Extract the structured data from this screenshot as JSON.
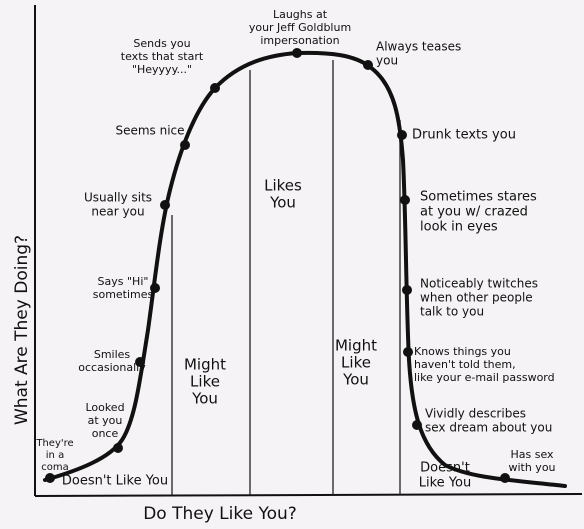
{
  "axes": {
    "y_label": "What Are They Doing?",
    "x_label": "Do They Like You?"
  },
  "regions": [
    {
      "lines": [
        "Doesn't Like You"
      ]
    },
    {
      "lines": [
        "Might",
        "Like",
        "You"
      ]
    },
    {
      "lines": [
        "Likes",
        "You"
      ]
    },
    {
      "lines": [
        "Might",
        "Like",
        "You"
      ]
    },
    {
      "lines": [
        "Doesn't",
        "Like You"
      ]
    }
  ],
  "points": [
    {
      "lines": [
        "They're",
        "in a",
        "coma"
      ]
    },
    {
      "lines": [
        "Looked",
        "at you",
        "once"
      ]
    },
    {
      "lines": [
        "Smiles",
        "occasionally"
      ]
    },
    {
      "lines": [
        "Says \"Hi\"",
        "sometimes"
      ]
    },
    {
      "lines": [
        "Usually sits",
        "near you"
      ]
    },
    {
      "lines": [
        "Seems nice"
      ]
    },
    {
      "lines": [
        "Sends you",
        "texts that start",
        "\"Heyyyy...\""
      ]
    },
    {
      "lines": [
        "Laughs at",
        "your Jeff Goldblum",
        "impersonation"
      ]
    },
    {
      "lines": [
        "Always teases",
        "you"
      ]
    },
    {
      "lines": [
        "Drunk texts you"
      ]
    },
    {
      "lines": [
        "Sometimes stares",
        "at you w/ crazed",
        "look in eyes"
      ]
    },
    {
      "lines": [
        "Noticeably twitches",
        "when other people",
        "talk to you"
      ]
    },
    {
      "lines": [
        "Knows things you",
        "haven't told them,",
        "like your e-mail password"
      ]
    },
    {
      "lines": [
        "Vividly describes",
        "sex dream about you"
      ]
    },
    {
      "lines": [
        "Has sex",
        "with you"
      ]
    }
  ]
}
